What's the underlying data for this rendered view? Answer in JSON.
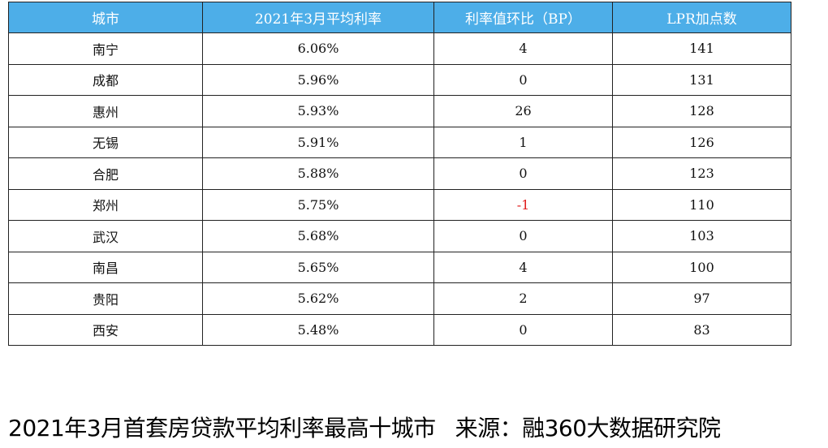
{
  "table": {
    "headers": [
      "城市",
      "2021年3月平均利率",
      "利率值环比（BP）",
      "LPR加点数"
    ],
    "rows": [
      [
        "南宁",
        "6.06%",
        "4",
        "141"
      ],
      [
        "成都",
        "5.96%",
        "0",
        "131"
      ],
      [
        "惠州",
        "5.93%",
        "26",
        "128"
      ],
      [
        "无锡",
        "5.91%",
        "1",
        "126"
      ],
      [
        "合肥",
        "5.88%",
        "0",
        "123"
      ],
      [
        "郑州",
        "5.75%",
        "-1",
        "110"
      ],
      [
        "武汉",
        "5.68%",
        "0",
        "103"
      ],
      [
        "南昌",
        "5.65%",
        "4",
        "100"
      ],
      [
        "贵阳",
        "5.62%",
        "2",
        "97"
      ],
      [
        "西安",
        "5.48%",
        "0",
        "83"
      ]
    ]
  },
  "caption": {
    "title": "2021年3月首套房贷款平均利率最高十城市",
    "source": "来源：融360大数据研究院"
  },
  "colors": {
    "header_bg": "#4daee8",
    "negative": "#e02020"
  }
}
